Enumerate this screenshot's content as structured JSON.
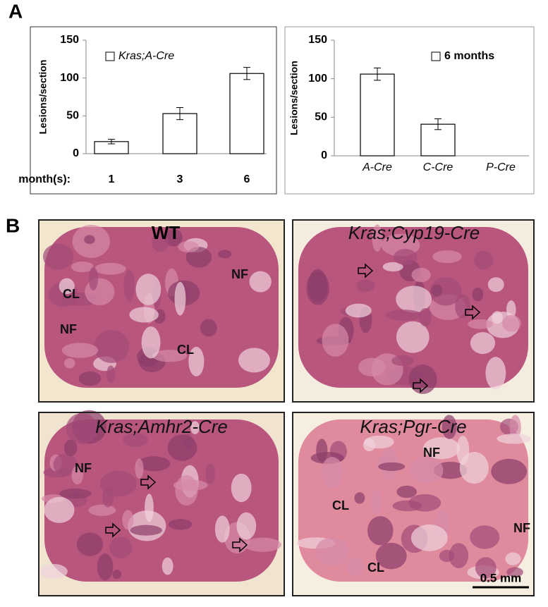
{
  "panel_a": {
    "label": "A"
  },
  "chart_data": [
    {
      "type": "bar",
      "y_label": "Lesions/section",
      "x_label": "month(s):",
      "categories": [
        "1",
        "3",
        "6"
      ],
      "series": [
        {
          "name": "Kras;A-Cre",
          "color": "#ffffff",
          "values": [
            16,
            53,
            106
          ],
          "errors": [
            3,
            8,
            8
          ]
        }
      ],
      "ylim": [
        0,
        150
      ],
      "yticks": [
        0,
        50,
        100,
        150
      ]
    },
    {
      "type": "bar",
      "y_label": "Lesions/section",
      "categories": [
        "A-Cre",
        "C-Cre",
        "P-Cre"
      ],
      "series": [
        {
          "name": "6 months",
          "color": "#ffffff",
          "values": [
            106,
            41,
            0
          ],
          "errors": [
            8,
            7,
            null
          ]
        }
      ],
      "ylim": [
        0,
        150
      ],
      "yticks": [
        0,
        50,
        100,
        150
      ]
    }
  ],
  "panel_b": {
    "label": "B",
    "scale_bar": "0.5 mm",
    "images": [
      {
        "title": "WT",
        "labels": [
          "CL",
          "NF",
          "NF",
          "CL"
        ]
      },
      {
        "title": "Kras;Cyp19-Cre",
        "labels": []
      },
      {
        "title": "Kras;Amhr2-Cre",
        "labels": [
          "NF"
        ]
      },
      {
        "title": "Kras;Pgr-Cre",
        "labels": [
          "NF",
          "CL",
          "NF",
          "CL"
        ]
      }
    ]
  }
}
